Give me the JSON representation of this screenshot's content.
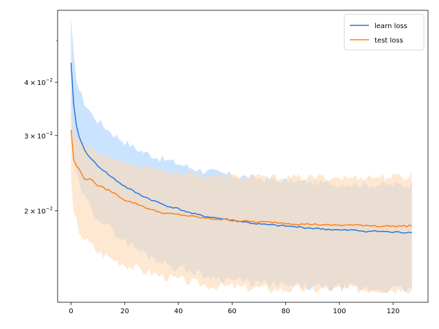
{
  "chart_data": {
    "type": "line",
    "title": "",
    "xlabel": "",
    "ylabel": "",
    "yscale": "log",
    "xlim": [
      -5,
      133
    ],
    "ylim": [
      0.0122,
      0.059
    ],
    "grid": false,
    "legend_position": "top-right",
    "x_ticks": [
      0,
      20,
      40,
      60,
      80,
      100,
      120
    ],
    "x_tick_labels": [
      "0",
      "20",
      "40",
      "60",
      "80",
      "100",
      "120"
    ],
    "y_ticks": [
      0.02,
      0.03,
      0.04
    ],
    "y_tick_labels": [
      {
        "mantissa": "2",
        "cross": "×",
        "base": "10",
        "exp": "−2"
      },
      {
        "mantissa": "3",
        "cross": "×",
        "base": "10",
        "exp": "−2"
      },
      {
        "mantissa": "4",
        "cross": "×",
        "base": "10",
        "exp": "−2"
      }
    ],
    "y_minor_ticks": [
      0.05
    ],
    "x_range": [
      0,
      127
    ],
    "series": [
      {
        "name": "learn loss",
        "color": "#1f77e0",
        "band_color": "#b3d9ff",
        "x": [
          0,
          1,
          2,
          3,
          5,
          8,
          10,
          15,
          20,
          25,
          30,
          35,
          40,
          45,
          50,
          55,
          60,
          65,
          70,
          75,
          80,
          85,
          90,
          95,
          100,
          105,
          110,
          115,
          120,
          125,
          127
        ],
        "y": [
          0.0443,
          0.0352,
          0.0318,
          0.0298,
          0.0278,
          0.0262,
          0.0255,
          0.024,
          0.0228,
          0.0219,
          0.0212,
          0.0206,
          0.0202,
          0.0197,
          0.0194,
          0.0192,
          0.019,
          0.0188,
          0.0186,
          0.0185,
          0.0184,
          0.0183,
          0.0182,
          0.0181,
          0.018,
          0.018,
          0.0179,
          0.0179,
          0.0178,
          0.0178,
          0.0178
        ],
        "upper": [
          0.056,
          0.046,
          0.041,
          0.0385,
          0.0358,
          0.0335,
          0.0325,
          0.0305,
          0.029,
          0.0278,
          0.027,
          0.0263,
          0.0258,
          0.0252,
          0.0248,
          0.0245,
          0.0242,
          0.024,
          0.0238,
          0.0236,
          0.0235,
          0.0234,
          0.0233,
          0.0232,
          0.0231,
          0.0231,
          0.023,
          0.023,
          0.023,
          0.023,
          0.023
        ],
        "lower": [
          0.033,
          0.0265,
          0.0245,
          0.023,
          0.0215,
          0.02,
          0.0194,
          0.018,
          0.017,
          0.0162,
          0.0156,
          0.0151,
          0.0147,
          0.0144,
          0.0141,
          0.0139,
          0.0138,
          0.0136,
          0.0135,
          0.0134,
          0.0133,
          0.0133,
          0.0132,
          0.0132,
          0.0132,
          0.0132,
          0.0131,
          0.0131,
          0.0131,
          0.0131,
          0.0131
        ]
      },
      {
        "name": "test loss",
        "color": "#ff7f0e",
        "band_color": "#ffd9b3",
        "x": [
          0,
          1,
          2,
          3,
          5,
          8,
          10,
          15,
          20,
          25,
          30,
          35,
          40,
          45,
          50,
          55,
          60,
          65,
          70,
          75,
          80,
          85,
          90,
          95,
          100,
          105,
          110,
          115,
          120,
          125,
          127
        ],
        "y": [
          0.031,
          0.0262,
          0.0255,
          0.025,
          0.0238,
          0.0236,
          0.0229,
          0.0222,
          0.0212,
          0.0207,
          0.0201,
          0.0197,
          0.0196,
          0.0194,
          0.0192,
          0.0191,
          0.019,
          0.0189,
          0.0188,
          0.0188,
          0.0187,
          0.0186,
          0.0186,
          0.0185,
          0.0185,
          0.0185,
          0.0185,
          0.0184,
          0.0184,
          0.0184,
          0.0185
        ],
        "upper": [
          0.038,
          0.031,
          0.03,
          0.0295,
          0.0285,
          0.028,
          0.0275,
          0.0268,
          0.026,
          0.0255,
          0.025,
          0.0247,
          0.0246,
          0.0244,
          0.0242,
          0.0241,
          0.024,
          0.024,
          0.0239,
          0.0239,
          0.0239,
          0.0239,
          0.0239,
          0.0239,
          0.0239,
          0.0239,
          0.024,
          0.024,
          0.024,
          0.024,
          0.0245
        ],
        "lower": [
          0.023,
          0.0195,
          0.019,
          0.018,
          0.0172,
          0.0165,
          0.016,
          0.0155,
          0.015,
          0.0146,
          0.0143,
          0.014,
          0.0138,
          0.0136,
          0.0134,
          0.0133,
          0.0133,
          0.0132,
          0.0132,
          0.0131,
          0.0131,
          0.0131,
          0.0131,
          0.0131,
          0.0131,
          0.0131,
          0.0131,
          0.0131,
          0.0131,
          0.0131,
          0.0131
        ]
      }
    ]
  }
}
